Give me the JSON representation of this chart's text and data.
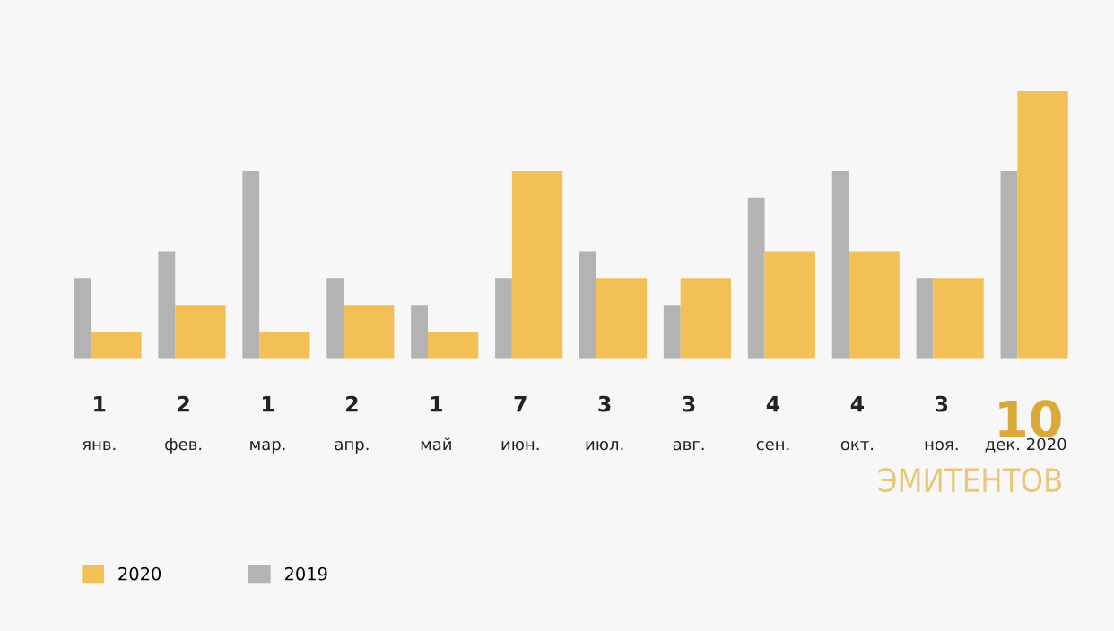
{
  "chart_data": {
    "type": "bar",
    "categories": [
      "янв.",
      "фев.",
      "мар.",
      "апр.",
      "май",
      "июн.",
      "июл.",
      "авг.",
      "сен.",
      "окт.",
      "ноя.",
      "дек. 2020"
    ],
    "series": [
      {
        "name": "2019",
        "color": "#b3b3b3",
        "values": [
          3,
          4,
          7,
          3,
          2,
          3,
          4,
          2,
          6,
          7,
          3,
          7
        ]
      },
      {
        "name": "2020",
        "color": "#f2c057",
        "values": [
          1,
          2,
          1,
          2,
          1,
          7,
          3,
          3,
          4,
          4,
          3,
          10
        ],
        "value_labels": [
          "1",
          "2",
          "1",
          "2",
          "1",
          "7",
          "3",
          "3",
          "4",
          "4",
          "3",
          "10"
        ]
      }
    ],
    "annotations": [
      "ЭМИТЕНТОВ"
    ],
    "legend": "bottom left"
  }
}
